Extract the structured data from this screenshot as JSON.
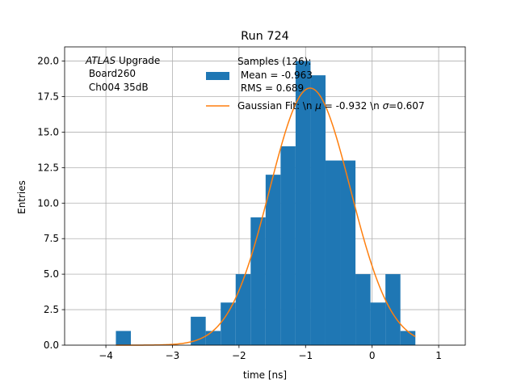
{
  "chart_data": {
    "type": "bar",
    "title": "Run 724",
    "xlabel": "time [ns]",
    "ylabel": "Entries",
    "xlim": [
      -4.62,
      1.4
    ],
    "ylim": [
      0,
      21
    ],
    "grid": true,
    "xticks": [
      -4,
      -3,
      -2,
      -1,
      0,
      1
    ],
    "xtick_labels": [
      "−4",
      "−3",
      "−2",
      "−1",
      "0",
      "1"
    ],
    "yticks": [
      0.0,
      2.5,
      5.0,
      7.5,
      10.0,
      12.5,
      15.0,
      17.5,
      20.0
    ],
    "ytick_labels": [
      "0.0",
      "2.5",
      "5.0",
      "7.5",
      "10.0",
      "12.5",
      "15.0",
      "17.5",
      "20.0"
    ],
    "annotation": {
      "italic": "ATLAS",
      "rest": " Upgrade",
      "line2": " Board260",
      "line3": " Ch004 35dB"
    },
    "histogram": {
      "name": "Samples (126):\n Mean = -0.963\n RMS = 0.689",
      "label_lines": [
        "Samples (126):",
        " Mean = -0.963",
        " RMS = 0.689"
      ],
      "color": "#1f77b4",
      "bin_edges": [
        -3.85,
        -3.625,
        -3.4,
        -3.175,
        -2.95,
        -2.725,
        -2.5,
        -2.275,
        -2.05,
        -1.825,
        -1.6,
        -1.375,
        -1.15,
        -0.925,
        -0.7,
        -0.475,
        -0.25,
        -0.025,
        0.2,
        0.425,
        0.65
      ],
      "counts": [
        1,
        0,
        0,
        0,
        0,
        2,
        1,
        3,
        5,
        9,
        12,
        14,
        20,
        19,
        13,
        13,
        5,
        3,
        5,
        1
      ]
    },
    "fit": {
      "name": "Gaussian Fit: \\n μ = -0.932 \\n σ=0.607",
      "label_parts": [
        "Gaussian Fit: \\n ",
        "μ",
        " = -0.932 \\n ",
        "σ",
        "=0.607"
      ],
      "color": "#ff7f0e",
      "mu": -0.932,
      "sigma": 0.607,
      "amplitude": 18.1,
      "x_range": [
        -3.85,
        0.65
      ]
    }
  }
}
